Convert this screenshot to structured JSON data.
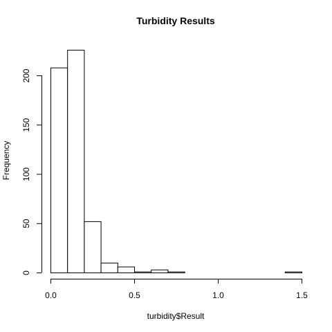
{
  "chart_data": {
    "type": "bar",
    "title": "Turbidity Results",
    "xlabel": "turbidity$Result",
    "ylabel": "Frequency",
    "bin_edges": [
      0.0,
      0.1,
      0.2,
      0.3,
      0.4,
      0.5,
      0.6,
      0.7,
      0.8,
      0.9,
      1.0,
      1.1,
      1.2,
      1.3,
      1.4,
      1.5
    ],
    "values": [
      208,
      226,
      52,
      10,
      6,
      1,
      3,
      1,
      0,
      0,
      0,
      0,
      0,
      0,
      1
    ],
    "xlim": [
      0.0,
      1.5
    ],
    "ylim": [
      0,
      226
    ],
    "x_ticks": [
      0.0,
      0.5,
      1.0,
      1.5
    ],
    "x_tick_labels": [
      "0.0",
      "0.5",
      "1.0",
      "1.5"
    ],
    "y_ticks": [
      0,
      50,
      100,
      150,
      200
    ],
    "y_tick_labels": [
      "0",
      "50",
      "100",
      "150",
      "200"
    ],
    "grid": false,
    "legend": "none"
  }
}
